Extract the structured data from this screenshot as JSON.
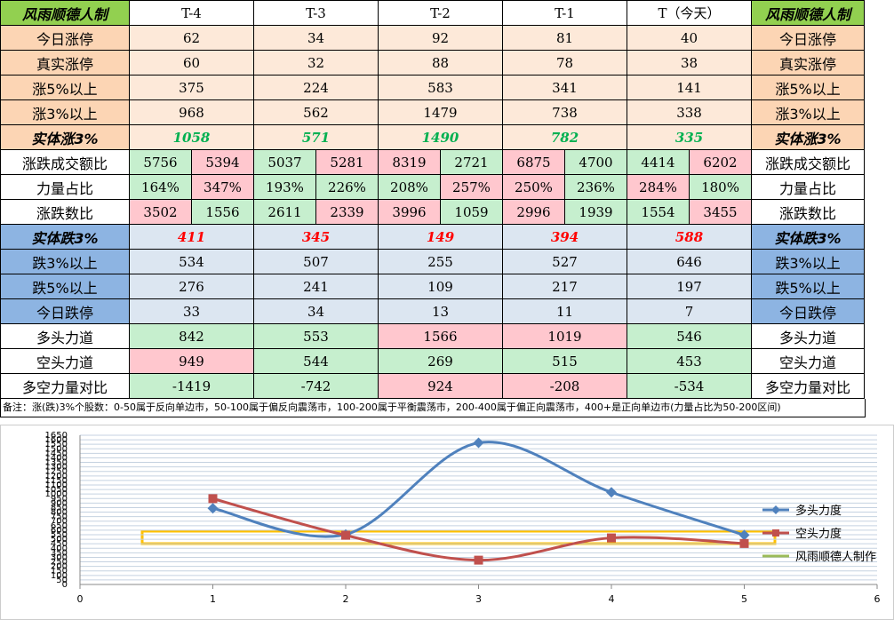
{
  "table": {
    "header": [
      "风雨顺德人制",
      "T-4",
      "T-3",
      "T-2",
      "T-1",
      "T（今天）",
      "风雨顺德人制"
    ],
    "header_color": "#92d050",
    "rows": [
      {
        "label": "今日涨停",
        "label_color": "#fcd5b4",
        "cell_color": "#fde9d9",
        "values": [
          62,
          34,
          92,
          81,
          40
        ]
      },
      {
        "label": "真实涨停",
        "label_color": "#fcd5b4",
        "cell_color": "#fde9d9",
        "values": [
          60,
          32,
          88,
          78,
          38
        ]
      },
      {
        "label": "涨5%以上",
        "label_color": "#fcd5b4",
        "cell_color": "#fde9d9",
        "values": [
          375,
          224,
          583,
          341,
          141
        ]
      },
      {
        "label": "涨3%以上",
        "label_color": "#fcd5b4",
        "cell_color": "#fde9d9",
        "values": [
          968,
          562,
          1479,
          738,
          338
        ]
      },
      {
        "label": "实体涨3%",
        "label_color": "#fcd5b4",
        "cell_color": "#fde9d9",
        "text_color": "#00b050",
        "bold": true,
        "values": [
          1058,
          571,
          1490,
          782,
          335
        ]
      },
      {
        "label": "涨跌成交额比",
        "values": [
          [
            5756,
            5394
          ],
          [
            5037,
            5281
          ],
          [
            8319,
            2721
          ],
          [
            6875,
            4700
          ],
          [
            4414,
            6202
          ]
        ],
        "colors": [
          [
            "#c6efce",
            "#ffc7ce"
          ],
          [
            "#c6efce",
            "#ffc7ce"
          ],
          [
            "#ffc7ce",
            "#c6efce"
          ],
          [
            "#ffc7ce",
            "#c6efce"
          ],
          [
            "#c6efce",
            "#ffc7ce"
          ]
        ]
      },
      {
        "label": "力量占比",
        "values": [
          [
            "164%",
            "347%"
          ],
          [
            "193%",
            "226%"
          ],
          [
            "208%",
            "257%"
          ],
          [
            "250%",
            "236%"
          ],
          [
            "284%",
            "180%"
          ]
        ],
        "colors": [
          [
            "#c6efce",
            "#ffc7ce"
          ],
          [
            "#c6efce",
            "#c6efce"
          ],
          [
            "#c6efce",
            "#ffc7ce"
          ],
          [
            "#ffc7ce",
            "#c6efce"
          ],
          [
            "#ffc7ce",
            "#c6efce"
          ]
        ]
      },
      {
        "label": "涨跌数比",
        "values": [
          [
            3502,
            1556
          ],
          [
            2611,
            2339
          ],
          [
            3996,
            1059
          ],
          [
            2996,
            1939
          ],
          [
            1554,
            3455
          ]
        ],
        "colors": [
          [
            "#ffc7ce",
            "#c6efce"
          ],
          [
            "#c6efce",
            "#ffc7ce"
          ],
          [
            "#ffc7ce",
            "#c6efce"
          ],
          [
            "#ffc7ce",
            "#c6efce"
          ],
          [
            "#c6efce",
            "#ffc7ce"
          ]
        ]
      },
      {
        "label": "实体跌3%",
        "label_color": "#8db4e2",
        "cell_color": "#dce6f1",
        "text_color": "#ff0000",
        "bold": true,
        "values": [
          411,
          345,
          149,
          394,
          588
        ]
      },
      {
        "label": "跌3%以上",
        "label_color": "#8db4e2",
        "cell_color": "#dce6f1",
        "values": [
          534,
          507,
          255,
          527,
          646
        ]
      },
      {
        "label": "跌5%以上",
        "label_color": "#8db4e2",
        "cell_color": "#dce6f1",
        "values": [
          276,
          241,
          109,
          217,
          197
        ]
      },
      {
        "label": "今日跌停",
        "label_color": "#8db4e2",
        "cell_color": "#dce6f1",
        "values": [
          33,
          34,
          13,
          11,
          7
        ]
      },
      {
        "label": "多头力道",
        "values": [
          842,
          553,
          1566,
          1019,
          546
        ],
        "colors": [
          "#c6efce",
          "#c6efce",
          "#ffc7ce",
          "#ffc7ce",
          "#c6efce"
        ]
      },
      {
        "label": "空头力道",
        "values": [
          949,
          544,
          269,
          515,
          453
        ],
        "colors": [
          "#ffc7ce",
          "#c6efce",
          "#c6efce",
          "#c6efce",
          "#c6efce"
        ]
      },
      {
        "label": "多空力量对比",
        "values": [
          -1419,
          -742,
          924,
          -208,
          -534
        ],
        "colors": [
          "#c6efce",
          "#c6efce",
          "#ffc7ce",
          "#ffc7ce",
          "#c6efce"
        ]
      }
    ],
    "note": "备注：涨(跌)3%个股数：0-50属于反向单边市，50-100属于偏反向震荡市，100-200属于平衡震荡市，200-400属于偏正向震荡市，400+是正向单边市(力量占比为50-200区间)"
  },
  "chart_data": {
    "type": "line",
    "x": [
      1,
      2,
      3,
      4,
      5
    ],
    "series": [
      {
        "name": "多头力度",
        "color": "#4f81bd",
        "marker": "diamond",
        "values": [
          842,
          553,
          1566,
          1019,
          546
        ]
      },
      {
        "name": "空头力度",
        "color": "#c0504d",
        "marker": "square",
        "values": [
          949,
          544,
          269,
          515,
          453
        ]
      }
    ],
    "legend_extra": {
      "name": "风雨顺德人制作",
      "color": "#9bbb59"
    },
    "xlim": [
      0,
      6
    ],
    "xticks": [
      0,
      1,
      2,
      3,
      4,
      5,
      6
    ],
    "ylim": [
      0,
      1650
    ],
    "yticks": [
      0,
      50,
      100,
      150,
      200,
      250,
      300,
      350,
      400,
      450,
      500,
      550,
      600,
      650,
      700,
      750,
      800,
      850,
      900,
      950,
      1000,
      1050,
      1100,
      1150,
      1200,
      1250,
      1300,
      1350,
      1400,
      1450,
      1500,
      1550,
      1600,
      1650
    ],
    "grid": true,
    "smooth": true,
    "legend": "right"
  }
}
